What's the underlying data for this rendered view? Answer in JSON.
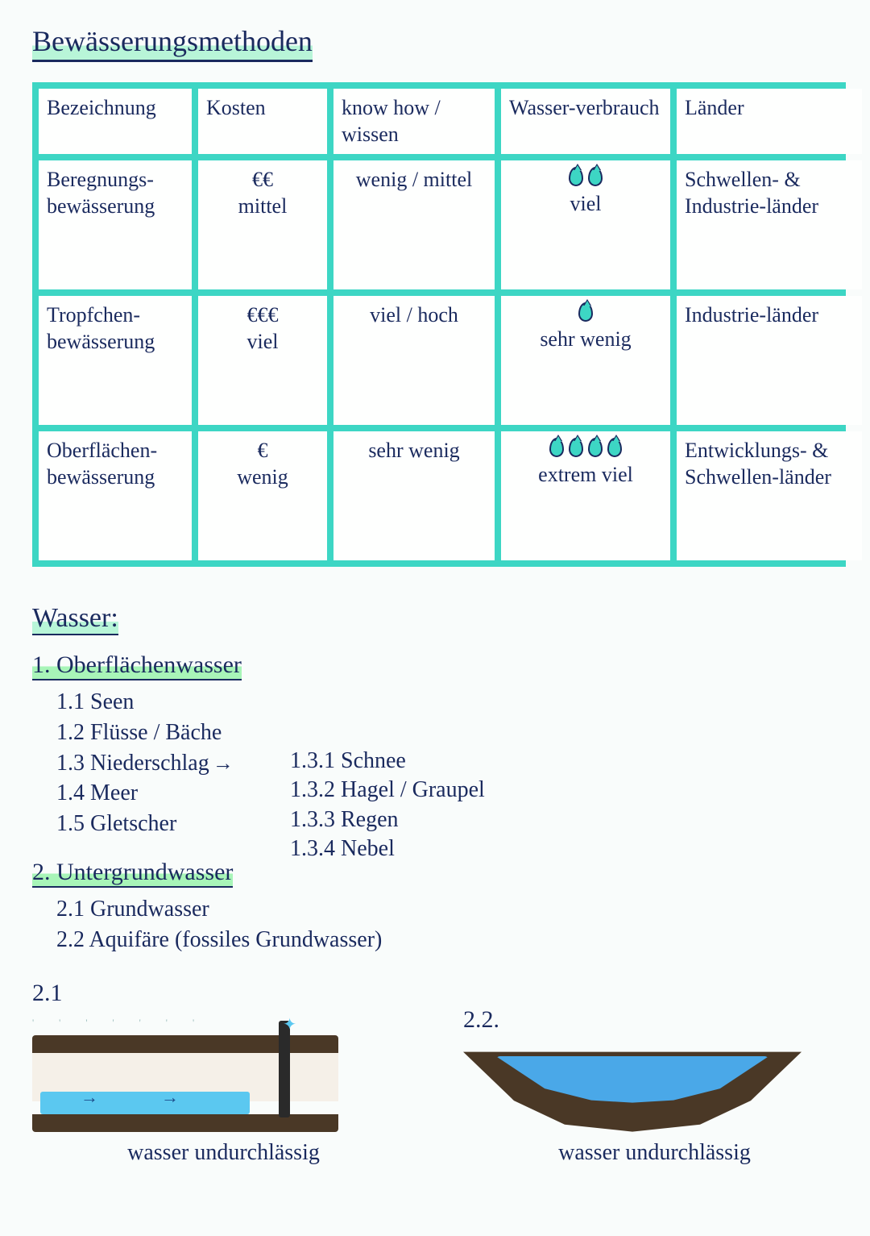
{
  "title": "Bewässerungsmethoden",
  "table": {
    "border_color": "#3dd6c4",
    "headers": {
      "c0": "Bezeichnung",
      "c1": "Kosten",
      "c2": "know how / wissen",
      "c3": "Wasser-verbrauch",
      "c4": "Länder"
    },
    "rows": [
      {
        "name": "Beregnungs-bewässerung",
        "cost_symbols": "€€",
        "cost_text": "mittel",
        "knowhow": "wenig / mittel",
        "water_drops": 2,
        "water_text": "viel",
        "countries": "Schwellen- & Industrie-länder"
      },
      {
        "name": "Tropfchen-bewässerung",
        "cost_symbols": "€€€",
        "cost_text": "viel",
        "knowhow": "viel / hoch",
        "water_drops": 1,
        "water_text": "sehr wenig",
        "countries": "Industrie-länder"
      },
      {
        "name": "Oberflächen-bewässerung",
        "cost_symbols": "€",
        "cost_text": "wenig",
        "knowhow": "sehr wenig",
        "water_drops": 4,
        "water_text": "extrem viel",
        "countries": "Entwicklungs- & Schwellen-länder"
      }
    ]
  },
  "section2_title": "Wasser:",
  "s1": {
    "heading": "1. Oberflächenwasser",
    "items": {
      "i1": "1.1 Seen",
      "i2": "1.2 Flüsse / Bäche",
      "i3": "1.3 Niederschlag",
      "i4": "1.4 Meer",
      "i5": "1.5 Gletscher"
    },
    "sub": {
      "i1": "1.3.1 Schnee",
      "i2": "1.3.2 Hagel / Graupel",
      "i3": "1.3.3 Regen",
      "i4": "1.3.4 Nebel"
    }
  },
  "s2": {
    "heading": "2. Untergrundwasser",
    "items": {
      "i1": "2.1 Grundwasser",
      "i2": "2.2 Aquifäre (fossiles Grundwasser)"
    }
  },
  "diagrams": {
    "d1_label": "2.1",
    "d2_label": "2.2.",
    "caption1": "wasser undurchlässig",
    "caption2": "wasser undurchlässig",
    "colors": {
      "soil": "#4a3826",
      "water_light": "#5bc8f0",
      "water_dark": "#4aa8e8"
    }
  }
}
